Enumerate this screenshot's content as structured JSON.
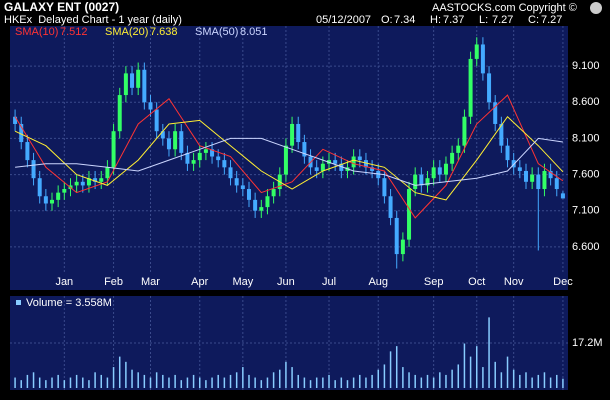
{
  "header": {
    "title": "GALAXY ENT (0027)",
    "copyright": "AASTOCKS.com Copyright ©",
    "subtitle": "HKEx  Delayed Chart - 1 year (daily)",
    "date": "05/12/2007",
    "ohlc_labels": [
      "O:",
      "H:",
      "L:",
      "C:"
    ]
  },
  "chart_data": [
    {
      "type": "candlestick",
      "up_color": "#33ff66",
      "down_color": "#44aaff",
      "grid": true,
      "open": [
        8.4,
        8.3,
        8.05,
        7.8,
        7.55,
        7.3,
        7.2,
        7.25,
        7.35,
        7.4,
        7.45,
        7.5,
        7.45,
        7.55,
        7.5,
        7.55,
        7.7,
        8.2,
        8.7,
        9.0,
        8.8,
        9.05,
        8.6,
        8.5,
        8.2,
        8.1,
        7.95,
        8.2,
        7.9,
        7.75,
        7.8,
        7.9,
        7.95,
        7.85,
        7.8,
        7.7,
        7.55,
        7.45,
        7.4,
        7.25,
        7.1,
        7.15,
        7.3,
        7.4,
        7.6,
        8.0,
        8.3,
        8.05,
        7.85,
        7.7,
        7.65,
        7.75,
        7.8,
        7.75,
        7.65,
        7.7,
        7.85,
        7.8,
        7.7,
        7.65,
        7.55,
        7.3,
        7.0,
        6.5,
        6.7,
        7.4,
        7.6,
        7.45,
        7.55,
        7.7,
        7.6,
        7.75,
        7.9,
        8.0,
        8.4,
        9.2,
        9.4,
        9.0,
        8.6,
        8.3,
        8.0,
        7.8,
        7.7,
        7.65,
        7.5,
        7.6,
        7.4,
        7.65,
        7.55,
        7.34
      ],
      "high": [
        8.5,
        8.4,
        8.15,
        7.9,
        7.65,
        7.4,
        7.35,
        7.45,
        7.5,
        7.55,
        7.6,
        7.6,
        7.65,
        7.65,
        7.65,
        7.8,
        8.3,
        8.8,
        9.1,
        9.1,
        9.15,
        9.15,
        8.7,
        8.6,
        8.3,
        8.2,
        8.3,
        8.3,
        8.0,
        7.9,
        8.0,
        8.05,
        8.05,
        7.95,
        7.9,
        7.8,
        7.65,
        7.55,
        7.5,
        7.35,
        7.25,
        7.4,
        7.5,
        7.7,
        8.1,
        8.4,
        8.4,
        8.15,
        7.95,
        7.8,
        7.85,
        7.9,
        7.9,
        7.85,
        7.8,
        7.95,
        7.95,
        7.9,
        7.8,
        7.75,
        7.65,
        7.4,
        7.1,
        6.8,
        7.5,
        7.7,
        7.7,
        7.65,
        7.8,
        7.8,
        7.85,
        8.0,
        8.1,
        8.5,
        9.3,
        9.5,
        9.5,
        9.1,
        8.7,
        8.4,
        8.1,
        7.9,
        7.8,
        7.75,
        7.7,
        7.7,
        7.75,
        7.75,
        7.65,
        7.37
      ],
      "low": [
        8.2,
        7.95,
        7.7,
        7.45,
        7.2,
        7.1,
        7.1,
        7.15,
        7.25,
        7.3,
        7.35,
        7.35,
        7.35,
        7.4,
        7.4,
        7.45,
        7.6,
        8.1,
        8.6,
        8.7,
        8.7,
        8.5,
        8.4,
        8.1,
        8.0,
        7.85,
        7.85,
        7.8,
        7.65,
        7.65,
        7.7,
        7.8,
        7.75,
        7.7,
        7.6,
        7.45,
        7.35,
        7.3,
        7.15,
        7.0,
        7.0,
        7.05,
        7.2,
        7.3,
        7.5,
        7.9,
        7.95,
        7.75,
        7.6,
        7.55,
        7.55,
        7.65,
        7.65,
        7.55,
        7.55,
        7.6,
        7.7,
        7.6,
        7.55,
        7.45,
        7.2,
        6.9,
        6.3,
        6.4,
        6.6,
        7.3,
        7.35,
        7.35,
        7.45,
        7.5,
        7.5,
        7.65,
        7.8,
        7.9,
        8.3,
        9.1,
        8.9,
        8.5,
        8.2,
        7.9,
        7.7,
        7.6,
        7.55,
        7.4,
        7.4,
        6.55,
        7.3,
        7.45,
        7.3,
        7.27
      ],
      "close": [
        8.3,
        8.05,
        7.8,
        7.55,
        7.3,
        7.2,
        7.25,
        7.35,
        7.4,
        7.45,
        7.5,
        7.45,
        7.55,
        7.5,
        7.55,
        7.7,
        8.2,
        8.7,
        9.0,
        8.8,
        9.05,
        8.6,
        8.5,
        8.2,
        8.1,
        7.95,
        8.2,
        7.9,
        7.75,
        7.8,
        7.9,
        7.95,
        7.85,
        7.8,
        7.7,
        7.55,
        7.45,
        7.4,
        7.25,
        7.1,
        7.15,
        7.3,
        7.4,
        7.6,
        8.0,
        8.3,
        8.05,
        7.85,
        7.7,
        7.65,
        7.75,
        7.8,
        7.75,
        7.65,
        7.7,
        7.85,
        7.8,
        7.7,
        7.65,
        7.55,
        7.3,
        7.0,
        6.5,
        6.7,
        7.4,
        7.6,
        7.45,
        7.55,
        7.7,
        7.6,
        7.75,
        7.9,
        8.0,
        8.4,
        9.2,
        9.4,
        9.0,
        8.6,
        8.3,
        8.0,
        7.8,
        7.7,
        7.65,
        7.5,
        7.6,
        7.4,
        7.65,
        7.55,
        7.4,
        7.27
      ],
      "xticks": [
        {
          "value": 8,
          "label": "Jan"
        },
        {
          "value": 16,
          "label": "Feb"
        },
        {
          "value": 22,
          "label": "Mar"
        },
        {
          "value": 30,
          "label": "Apr"
        },
        {
          "value": 37,
          "label": "May"
        },
        {
          "value": 44,
          "label": "Jun"
        },
        {
          "value": 51,
          "label": "Jul"
        },
        {
          "value": 59,
          "label": "Aug"
        },
        {
          "value": 68,
          "label": "Sep"
        },
        {
          "value": 75,
          "label": "Oct"
        },
        {
          "value": 81,
          "label": "Nov"
        },
        {
          "value": 89,
          "label": "Dec"
        }
      ],
      "ylim": [
        6.1,
        9.6
      ],
      "yticks": [
        {
          "value": 6.6,
          "label": "6.600"
        },
        {
          "value": 7.1,
          "label": "7.100"
        },
        {
          "value": 7.6,
          "label": "7.600"
        },
        {
          "value": 8.1,
          "label": "8.100"
        },
        {
          "value": 8.6,
          "label": "8.600"
        },
        {
          "value": 9.1,
          "label": "9.100"
        }
      ],
      "lines": [
        {
          "name": "SMA(10)",
          "color": "#ff3333",
          "x": [
            0,
            5,
            10,
            15,
            20,
            25,
            30,
            35,
            40,
            45,
            50,
            55,
            60,
            65,
            70,
            75,
            80,
            85,
            89
          ],
          "values": [
            8.4,
            7.7,
            7.35,
            7.5,
            8.3,
            8.65,
            8.0,
            7.85,
            7.35,
            7.5,
            7.95,
            7.75,
            7.65,
            7.0,
            7.45,
            8.3,
            8.7,
            7.75,
            7.512
          ]
        },
        {
          "name": "SMA(20)",
          "color": "#ffee33",
          "x": [
            0,
            5,
            10,
            15,
            20,
            25,
            30,
            35,
            40,
            45,
            50,
            55,
            60,
            65,
            70,
            75,
            80,
            85,
            89
          ],
          "values": [
            8.2,
            8.0,
            7.6,
            7.45,
            7.8,
            8.3,
            8.35,
            8.0,
            7.65,
            7.4,
            7.65,
            7.8,
            7.7,
            7.35,
            7.25,
            7.8,
            8.4,
            8.0,
            7.638
          ]
        },
        {
          "name": "SMA(50)",
          "color": "#ccd6ff",
          "x": [
            0,
            5,
            10,
            15,
            20,
            25,
            30,
            35,
            40,
            45,
            50,
            55,
            60,
            65,
            70,
            75,
            80,
            85,
            89
          ],
          "values": [
            7.7,
            7.75,
            7.75,
            7.7,
            7.65,
            7.8,
            7.95,
            8.1,
            8.1,
            7.95,
            7.8,
            7.65,
            7.6,
            7.45,
            7.5,
            7.55,
            7.65,
            8.1,
            8.051
          ]
        }
      ]
    },
    {
      "type": "bar",
      "title": "Volume = 3.558M",
      "color": "#88ccff",
      "values": [
        4,
        3,
        5,
        6,
        4,
        3,
        4,
        5,
        3,
        4,
        5,
        4,
        3,
        6,
        5,
        4,
        8,
        12,
        10,
        7,
        6,
        5,
        4,
        6,
        5,
        4,
        5,
        3,
        4,
        5,
        4,
        3,
        4,
        5,
        4,
        5,
        6,
        8,
        5,
        4,
        3,
        4,
        6,
        7,
        10,
        8,
        5,
        4,
        3,
        4,
        4,
        5,
        3,
        4,
        3,
        4,
        5,
        4,
        5,
        7,
        9,
        14,
        16,
        8,
        6,
        5,
        4,
        5,
        4,
        6,
        5,
        7,
        9,
        17,
        12,
        16,
        8,
        27,
        10,
        6,
        12,
        7,
        5,
        6,
        4,
        5,
        6,
        4,
        5,
        3.558
      ],
      "ylim": [
        0,
        34.4
      ],
      "yticks": [
        {
          "value": 17.2,
          "label": "17.2M"
        }
      ]
    }
  ]
}
